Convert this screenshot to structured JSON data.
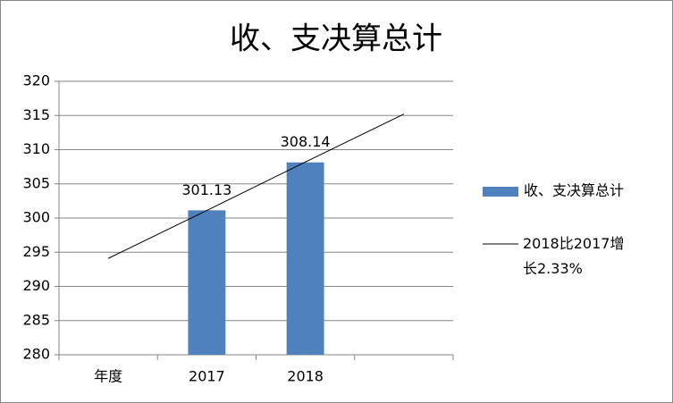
{
  "chart_data": {
    "type": "bar",
    "title": "收、支决算总计",
    "categories": [
      "年度",
      "2017",
      "2018",
      null
    ],
    "series": [
      {
        "name": "收、支决算总计",
        "color": "#4f81bd",
        "values": [
          null,
          301.13,
          308.14,
          null
        ],
        "data_labels": true
      },
      {
        "name": "2018比2017增长2.33%",
        "type": "line",
        "color": "#000000",
        "values": [
          294.1,
          301.1,
          308.2,
          315.2
        ]
      }
    ],
    "ylim": [
      280,
      320
    ],
    "yticks": [
      280,
      285,
      290,
      295,
      300,
      305,
      310,
      315,
      320
    ],
    "grid": true,
    "legend": "right"
  }
}
